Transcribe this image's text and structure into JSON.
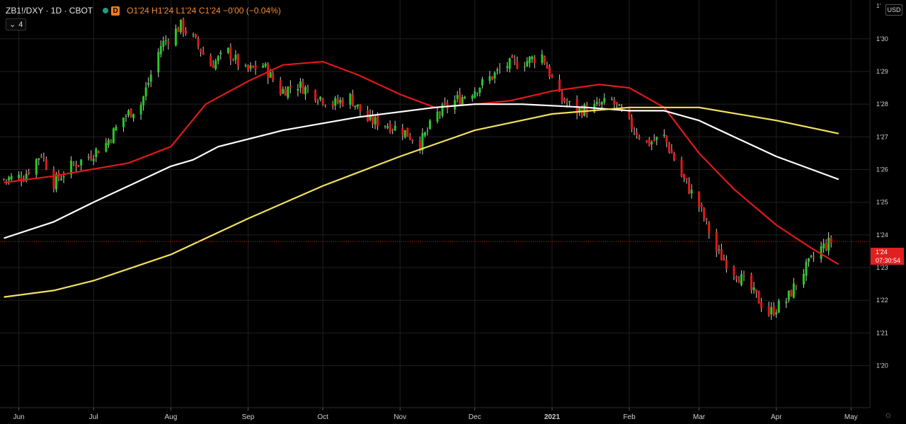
{
  "header": {
    "symbol": "ZB1!/DXY · 1D · CBOT",
    "interval_badge": "D",
    "open_label": "O",
    "open": "1'24",
    "high_label": "H",
    "high": "1'24",
    "low_label": "L",
    "low": "1'24",
    "close_label": "C",
    "close": "1'24",
    "change": "−0'00 (−0.04%)",
    "indicators_toggle": "4",
    "currency": "USD",
    "top_tick": "1'"
  },
  "price_tag": {
    "price": "1'24",
    "countdown": "07:30:54",
    "value": 1.238
  },
  "colors": {
    "background": "#000000",
    "up": "#26c826",
    "down": "#e01919",
    "ma_red": "#e01919",
    "ma_white": "#ffffff",
    "ma_yellow": "#f2e15c",
    "grid": "#1f1f1f",
    "accent": "#ff7a1a"
  },
  "chart_data": {
    "type": "candlestick",
    "title": "ZB1!/DXY",
    "x_axis_labels": [
      "Jun",
      "Jul",
      "Aug",
      "Sep",
      "Oct",
      "Nov",
      "Dec",
      "2021",
      "Feb",
      "Mar",
      "Apr",
      "May"
    ],
    "x_axis_dates": [
      "2020-06-01",
      "2020-07-01",
      "2020-08-01",
      "2020-09-01",
      "2020-10-01",
      "2020-11-01",
      "2020-12-01",
      "2021-01-01",
      "2021-02-01",
      "2021-03-01",
      "2021-04-01",
      "2021-05-01"
    ],
    "y_axis_labels": [
      "1'30",
      "1'29",
      "1'28",
      "1'27",
      "1'26",
      "1'25",
      "1'24",
      "1'23",
      "1'22",
      "1'21",
      "1'20"
    ],
    "y_axis_values": [
      1.3,
      1.29,
      1.28,
      1.27,
      1.26,
      1.25,
      1.24,
      1.23,
      1.22,
      1.21,
      1.2
    ],
    "ylim": [
      1.188,
      1.311
    ],
    "last_price_line": 1.238,
    "series": [
      {
        "type": "candles",
        "trend_points": [
          [
            "2020-05-26",
            1.257
          ],
          [
            "2020-06-03",
            1.258
          ],
          [
            "2020-06-10",
            1.265
          ],
          [
            "2020-06-15",
            1.256
          ],
          [
            "2020-06-22",
            1.261
          ],
          [
            "2020-06-29",
            1.264
          ],
          [
            "2020-07-06",
            1.268
          ],
          [
            "2020-07-13",
            1.276
          ],
          [
            "2020-07-20",
            1.28
          ],
          [
            "2020-07-28",
            1.298
          ],
          [
            "2020-08-05",
            1.304
          ],
          [
            "2020-08-10",
            1.3
          ],
          [
            "2020-08-17",
            1.292
          ],
          [
            "2020-08-24",
            1.296
          ],
          [
            "2020-08-31",
            1.29
          ],
          [
            "2020-09-07",
            1.292
          ],
          [
            "2020-09-14",
            1.284
          ],
          [
            "2020-09-21",
            1.286
          ],
          [
            "2020-09-28",
            1.283
          ],
          [
            "2020-10-05",
            1.28
          ],
          [
            "2020-10-12",
            1.282
          ],
          [
            "2020-10-19",
            1.275
          ],
          [
            "2020-10-26",
            1.274
          ],
          [
            "2020-11-02",
            1.272
          ],
          [
            "2020-11-09",
            1.268
          ],
          [
            "2020-11-16",
            1.277
          ],
          [
            "2020-11-23",
            1.281
          ],
          [
            "2020-11-30",
            1.284
          ],
          [
            "2020-12-07",
            1.288
          ],
          [
            "2020-12-14",
            1.292
          ],
          [
            "2020-12-21",
            1.293
          ],
          [
            "2020-12-28",
            1.295
          ],
          [
            "2021-01-04",
            1.282
          ],
          [
            "2021-01-11",
            1.278
          ],
          [
            "2021-01-18",
            1.279
          ],
          [
            "2021-01-25",
            1.281
          ],
          [
            "2021-02-01",
            1.274
          ],
          [
            "2021-02-08",
            1.268
          ],
          [
            "2021-02-15",
            1.27
          ],
          [
            "2021-02-22",
            1.258
          ],
          [
            "2021-03-01",
            1.249
          ],
          [
            "2021-03-08",
            1.235
          ],
          [
            "2021-03-15",
            1.229
          ],
          [
            "2021-03-22",
            1.223
          ],
          [
            "2021-03-29",
            1.216
          ],
          [
            "2021-04-05",
            1.22
          ],
          [
            "2021-04-12",
            1.229
          ],
          [
            "2021-04-19",
            1.236
          ],
          [
            "2021-04-23",
            1.238
          ]
        ]
      },
      {
        "type": "line",
        "color_key": "ma_red",
        "points": [
          [
            "2020-05-26",
            1.256
          ],
          [
            "2020-06-15",
            1.258
          ],
          [
            "2020-07-15",
            1.262
          ],
          [
            "2020-08-01",
            1.267
          ],
          [
            "2020-08-15",
            1.28
          ],
          [
            "2020-09-01",
            1.287
          ],
          [
            "2020-09-15",
            1.292
          ],
          [
            "2020-10-01",
            1.293
          ],
          [
            "2020-10-15",
            1.289
          ],
          [
            "2020-11-01",
            1.283
          ],
          [
            "2020-11-15",
            1.279
          ],
          [
            "2020-12-01",
            1.28
          ],
          [
            "2020-12-15",
            1.281
          ],
          [
            "2021-01-01",
            1.284
          ],
          [
            "2021-01-20",
            1.286
          ],
          [
            "2021-02-01",
            1.285
          ],
          [
            "2021-02-15",
            1.279
          ],
          [
            "2021-03-01",
            1.265
          ],
          [
            "2021-03-15",
            1.254
          ],
          [
            "2021-04-01",
            1.243
          ],
          [
            "2021-04-15",
            1.236
          ],
          [
            "2021-04-26",
            1.231
          ]
        ]
      },
      {
        "type": "line",
        "color_key": "ma_white",
        "points": [
          [
            "2020-05-26",
            1.239
          ],
          [
            "2020-06-15",
            1.244
          ],
          [
            "2020-07-01",
            1.25
          ],
          [
            "2020-08-01",
            1.261
          ],
          [
            "2020-08-10",
            1.263
          ],
          [
            "2020-08-20",
            1.267
          ],
          [
            "2020-09-15",
            1.272
          ],
          [
            "2020-10-15",
            1.276
          ],
          [
            "2020-11-15",
            1.279
          ],
          [
            "2020-12-01",
            1.28
          ],
          [
            "2020-12-20",
            1.28
          ],
          [
            "2021-01-15",
            1.279
          ],
          [
            "2021-02-01",
            1.278
          ],
          [
            "2021-02-15",
            1.278
          ],
          [
            "2021-03-01",
            1.275
          ],
          [
            "2021-03-15",
            1.27
          ],
          [
            "2021-04-01",
            1.264
          ],
          [
            "2021-04-26",
            1.257
          ]
        ]
      },
      {
        "type": "line",
        "color_key": "ma_yellow",
        "points": [
          [
            "2020-05-26",
            1.221
          ],
          [
            "2020-06-15",
            1.223
          ],
          [
            "2020-07-01",
            1.226
          ],
          [
            "2020-08-01",
            1.234
          ],
          [
            "2020-09-01",
            1.245
          ],
          [
            "2020-10-01",
            1.255
          ],
          [
            "2020-11-01",
            1.264
          ],
          [
            "2020-12-01",
            1.272
          ],
          [
            "2021-01-01",
            1.277
          ],
          [
            "2021-02-01",
            1.279
          ],
          [
            "2021-02-15",
            1.279
          ],
          [
            "2021-03-01",
            1.279
          ],
          [
            "2021-04-01",
            1.275
          ],
          [
            "2021-04-26",
            1.271
          ]
        ]
      }
    ]
  }
}
